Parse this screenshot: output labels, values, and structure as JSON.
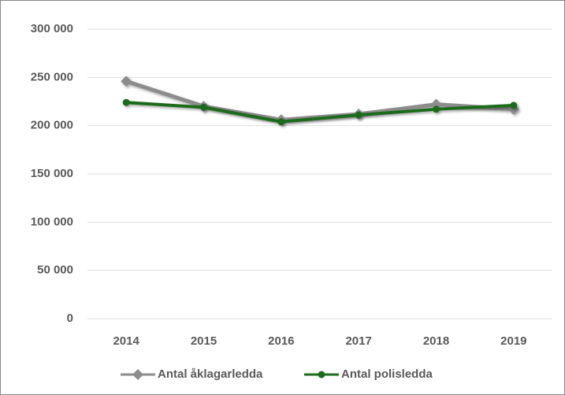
{
  "chart_data": {
    "type": "line",
    "categories": [
      "2014",
      "2015",
      "2016",
      "2017",
      "2018",
      "2019"
    ],
    "series": [
      {
        "name": "Antal åklagarledda",
        "color": "#8c8c8c",
        "marker": "diamond",
        "values": [
          246000,
          220000,
          206000,
          212000,
          222000,
          217000
        ]
      },
      {
        "name": "Antal polisledda",
        "color": "#1e6b1e",
        "marker": "circle",
        "values": [
          224000,
          219000,
          204000,
          211000,
          217000,
          221000
        ]
      }
    ],
    "ylim": [
      0,
      300000
    ],
    "yticks": [
      0,
      {
        "value": 50000,
        "label": "50 000"
      },
      {
        "value": 100000,
        "label": "100 000"
      },
      {
        "value": 150000,
        "label": "150 000"
      },
      {
        "value": 200000,
        "label": "200 000"
      },
      {
        "value": 250000,
        "label": "250 000"
      },
      {
        "value": 300000,
        "label": "300 000"
      }
    ],
    "grid": true,
    "legend": "bottom"
  }
}
